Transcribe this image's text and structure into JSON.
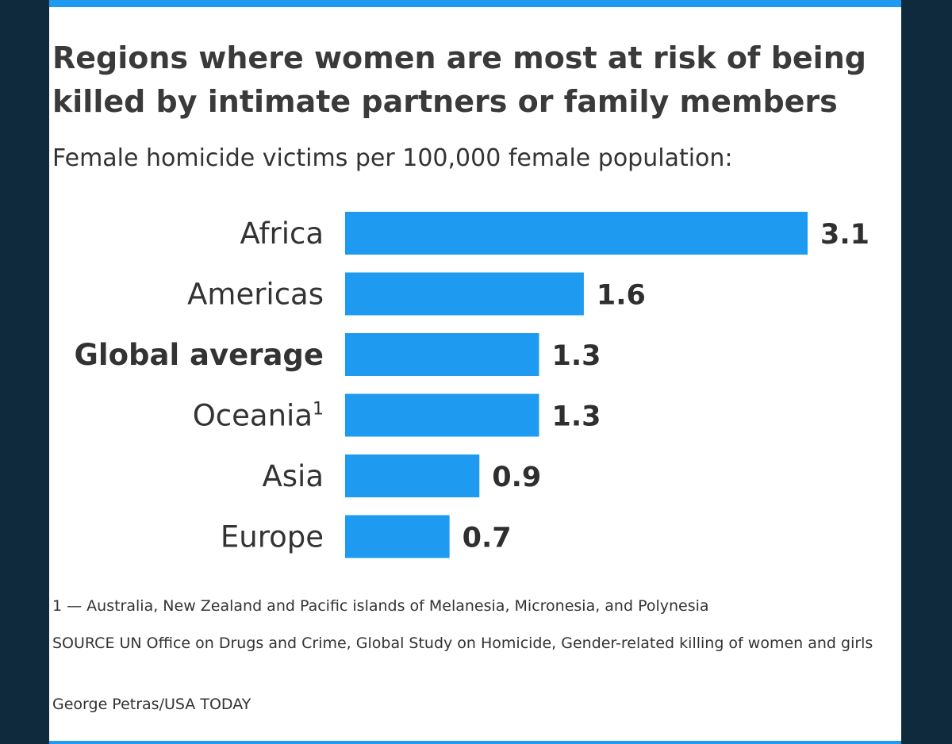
{
  "title": "Regions where women are most at risk of being killed by intimate partners or family members",
  "subtitle": "Female homicide victims per 100,000 female population:",
  "footnote": "1 — Australia, New Zealand and Pacific islands of Melanesia, Micronesia, and Polynesia",
  "source": "SOURCE UN Office on Drugs and Crime, Global Study on Homicide, Gender-related killing of women and girls",
  "credit": "George Petras/USA TODAY",
  "colors": {
    "bar": "#1e9bf0",
    "background_frame": "#0f2a3d",
    "card": "#ffffff",
    "text": "#333333"
  },
  "chart_data": {
    "type": "bar",
    "orientation": "horizontal",
    "categories": [
      "Africa",
      "Americas",
      "Global average",
      "Oceania",
      "Asia",
      "Europe"
    ],
    "category_superscripts": [
      "",
      "",
      "",
      "1",
      "",
      ""
    ],
    "bold_categories": [
      "Global average"
    ],
    "values": [
      3.1,
      1.6,
      1.3,
      1.3,
      0.9,
      0.7
    ],
    "value_labels": [
      "3.1",
      "1.6",
      "1.3",
      "1.3",
      "0.9",
      "0.7"
    ],
    "title": "Regions where women are most at risk of being killed by intimate partners or family members",
    "subtitle": "Female homicide victims per 100,000 female population:",
    "xlabel": "",
    "ylabel": "",
    "xlim": [
      0,
      3.1
    ],
    "grid": false,
    "legend": "none"
  }
}
